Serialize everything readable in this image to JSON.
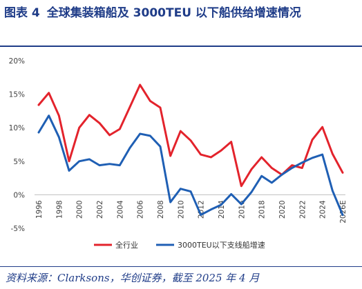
{
  "header": {
    "figure_label": "图表 4",
    "title_text": "全球集装箱船及 3000TEU 以下船供给增速情况"
  },
  "source_note": "资料来源：Clarksons，华创证券，截至 2025 年 4 月",
  "colors": {
    "title": "#1f3c88",
    "series_all": "#e3232c",
    "series_small": "#1f5fb4",
    "zero_line": "#bfbfbf"
  },
  "chart_data": {
    "type": "line",
    "x": [
      1996,
      1997,
      1998,
      1999,
      2000,
      2001,
      2002,
      2003,
      2004,
      2005,
      2006,
      2007,
      2008,
      2009,
      2010,
      2011,
      2012,
      2013,
      2014,
      2015,
      2016,
      2017,
      2018,
      2019,
      2020,
      2021,
      2022,
      2023,
      2024,
      2025,
      2026
    ],
    "x_tick_labels": [
      "1996",
      "1998",
      "2000",
      "2002",
      "2004",
      "2006",
      "2008",
      "2010",
      "2012",
      "2014",
      "2016",
      "2018",
      "2020",
      "2022",
      "2024",
      "2026E"
    ],
    "y_tick_labels": [
      "-5%",
      "0%",
      "5%",
      "10%",
      "15%",
      "20%"
    ],
    "ylim": [
      -5,
      20
    ],
    "y_ticks": [
      -5,
      0,
      5,
      10,
      15,
      20
    ],
    "y_unit": "%",
    "grid": false,
    "legend_position": "bottom",
    "series": [
      {
        "name": "全行业",
        "color": "#e3232c",
        "values": [
          13.4,
          15.2,
          11.8,
          5.0,
          10.0,
          11.9,
          10.7,
          8.9,
          9.8,
          13.1,
          16.4,
          14.0,
          13.0,
          5.8,
          9.5,
          8.1,
          6.0,
          5.6,
          6.6,
          7.9,
          1.3,
          3.8,
          5.6,
          4.0,
          3.0,
          4.4,
          4.0,
          8.2,
          10.1,
          6.1,
          3.3
        ]
      },
      {
        "name": "3000TEU以下支线船增速",
        "color": "#1f5fb4",
        "values": [
          9.3,
          11.8,
          8.6,
          3.6,
          5.0,
          5.3,
          4.4,
          4.6,
          4.4,
          7.0,
          9.1,
          8.8,
          7.2,
          -1.1,
          0.9,
          0.5,
          -3.0,
          -2.2,
          -1.5,
          0.1,
          -1.4,
          0.4,
          2.8,
          1.8,
          3.0,
          4.0,
          4.8,
          5.5,
          6.0,
          0.6,
          -3.0
        ]
      }
    ]
  }
}
